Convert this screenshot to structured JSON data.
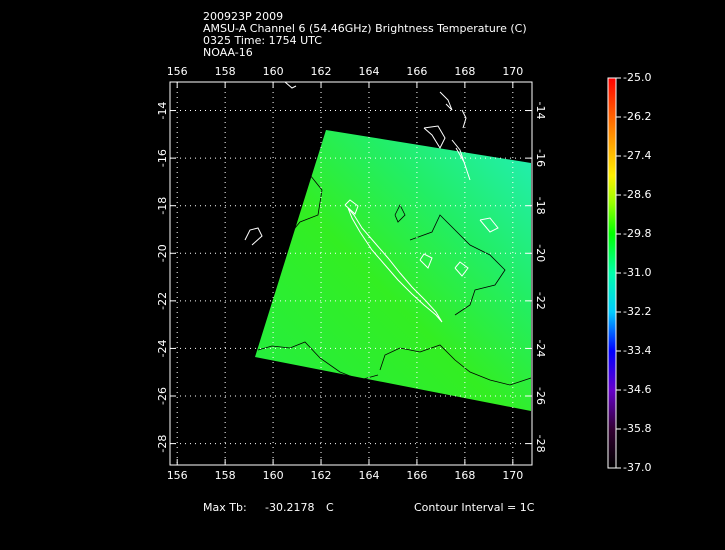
{
  "header": {
    "lines": [
      "200923P 2009",
      "AMSU-A Channel 6 (54.46GHz) Brightness Temperature (C)",
      "0325 Time: 1754 UTC",
      "NOAA-16"
    ]
  },
  "map": {
    "xlim": [
      155.7,
      170.8
    ],
    "ylim": [
      -28.9,
      -12.8
    ],
    "xticks": [
      156,
      158,
      160,
      162,
      164,
      166,
      168,
      170
    ],
    "yticks": [
      -14,
      -16,
      -18,
      -20,
      -22,
      -24,
      -26,
      -28
    ]
  },
  "colorbar": {
    "lim": [
      -37,
      -25
    ],
    "ticks": [
      {
        "value": -25,
        "label": "-25.0"
      },
      -26.2,
      -27.4,
      -28.6,
      -29.8,
      {
        "value": -31,
        "label": "-31.0"
      },
      -32.2,
      -33.4,
      -34.6,
      -35.8,
      {
        "value": -37,
        "label": "-37.0"
      }
    ]
  },
  "footer": {
    "max_label": "Max Tb:",
    "max_value": -30.2178,
    "unit": "C",
    "contour": "Contour Interval = 1C"
  }
}
